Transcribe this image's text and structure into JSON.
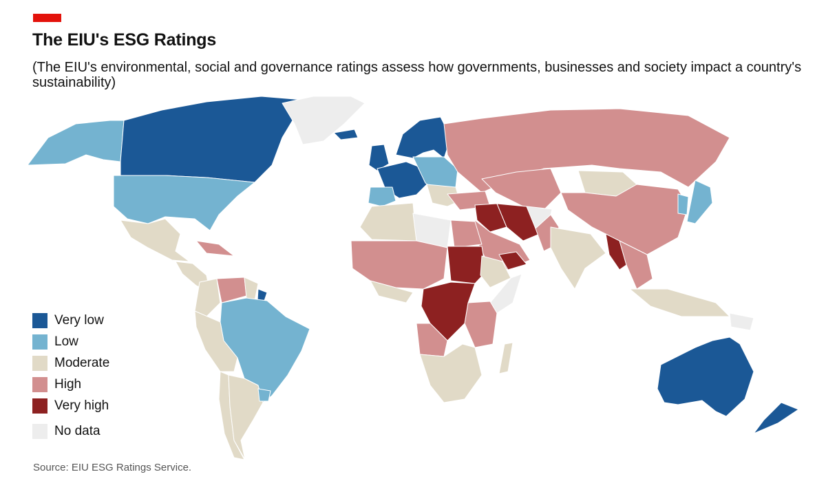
{
  "header": {
    "title": "The EIU's ESG Ratings",
    "subtitle": "(The EIU's environmental, social and governance ratings assess how governments, businesses and society impact a country's sustainability)",
    "brand_color": "#e3120b"
  },
  "legend": {
    "items": [
      {
        "label": "Very low",
        "color": "#1b5896"
      },
      {
        "label": "Low",
        "color": "#74b3d0"
      },
      {
        "label": "Moderate",
        "color": "#e1dac7"
      },
      {
        "label": "High",
        "color": "#d28f8f"
      },
      {
        "label": "Very high",
        "color": "#8d2121"
      },
      {
        "label": "No data",
        "color": "#ededed"
      }
    ]
  },
  "map": {
    "border_color": "#ffffff",
    "region_ratings": {
      "canada": "Very low",
      "alaska": "Low",
      "greenland": "No data",
      "usa": "Low",
      "mexico": "Moderate",
      "central-america": "Moderate",
      "caribbean": "High",
      "colombia": "Moderate",
      "venezuela": "High",
      "guianas": "Moderate",
      "guyana-east": "Very low",
      "brazil": "Low",
      "peru-bolivia": "Moderate",
      "chile": "Moderate",
      "argentina": "Moderate",
      "uruguay": "Low",
      "iceland": "Very low",
      "scandinavia": "Very low",
      "uk": "Very low",
      "western-europe": "Very low",
      "central-europe": "Low",
      "balkans": "Moderate",
      "iberia": "Low",
      "russia": "High",
      "turkey": "High",
      "kazakhstan-central-asia": "High",
      "mongolia": "Moderate",
      "china": "High",
      "korea": "Low",
      "japan": "Low",
      "middle-east": "High",
      "iran": "Very high",
      "iraq-syria": "Very high",
      "afghanistan": "No data",
      "pakistan": "High",
      "india": "Moderate",
      "myanmar": "Very high",
      "indochina": "High",
      "southeast-asia-islands": "Moderate",
      "papua": "No data",
      "australia": "Very low",
      "new-zealand": "Very low",
      "north-africa": "Moderate",
      "libya": "No data",
      "egypt": "High",
      "west-africa": "High",
      "gulf-of-guinea": "Moderate",
      "sudan": "Very high",
      "yemen": "Very high",
      "horn": "Moderate",
      "somalia": "No data",
      "east-africa": "High",
      "drc": "Very high",
      "angola": "High",
      "southern-africa": "Moderate",
      "madagascar": "Moderate"
    }
  },
  "source": "Source: EIU ESG Ratings Service."
}
